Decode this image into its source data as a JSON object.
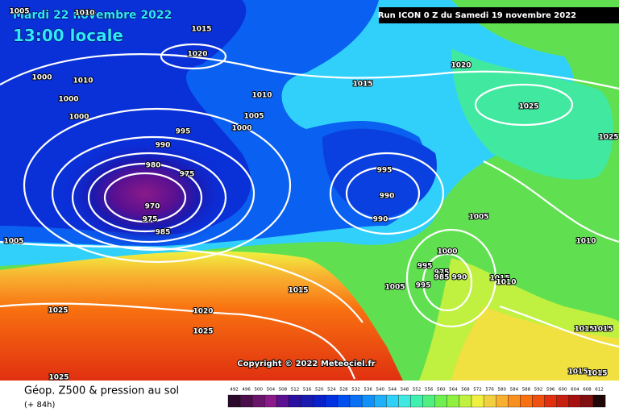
{
  "header": {
    "date": "Mardi 22 novembre 2022",
    "time": "13:00 locale",
    "run": "Run ICON 0 Z du Samedi 19 novembre 2022"
  },
  "copyright": "Copyright © 2022 Meteociel.fr",
  "footer": {
    "title": "Géop. Z500 & pression au sol",
    "lead": "(+ 84h)"
  },
  "legend": {
    "values": [
      492,
      496,
      500,
      504,
      508,
      512,
      516,
      520,
      524,
      528,
      532,
      536,
      540,
      544,
      548,
      552,
      556,
      560,
      564,
      568,
      572,
      576,
      580,
      584,
      588,
      592,
      596,
      600,
      604,
      608,
      612
    ],
    "colors": [
      "#2a0a2a",
      "#4a0f4a",
      "#6a146a",
      "#8a1a8a",
      "#5a1090",
      "#2a10a0",
      "#1a1ab0",
      "#0a20c8",
      "#0030e0",
      "#0050f0",
      "#0a70f5",
      "#1090f8",
      "#20b0fa",
      "#30d0fb",
      "#40e8e0",
      "#40f0b0",
      "#50f080",
      "#70f050",
      "#90f040",
      "#c0f040",
      "#f0f040",
      "#f0d040",
      "#f8b030",
      "#f89020",
      "#f87010",
      "#f05010",
      "#e03010",
      "#c82010",
      "#a81010",
      "#801010",
      "#200808"
    ]
  },
  "isobars": [
    "1005",
    "1010",
    "1015",
    "1020",
    "1000",
    "1010",
    "1000",
    "1000",
    "1010",
    "1005",
    "1000",
    "995",
    "990",
    "980",
    "975",
    "970",
    "975",
    "985",
    "1005",
    "1015",
    "1020",
    "1025",
    "1025",
    "995",
    "990",
    "990",
    "1005",
    "1010",
    "1000",
    "995",
    "975",
    "985",
    "990",
    "995",
    "1005",
    "1015",
    "1015",
    "1010",
    "1025",
    "1020",
    "1025",
    "1025",
    "1015",
    "1015",
    "1015",
    "1015"
  ]
}
